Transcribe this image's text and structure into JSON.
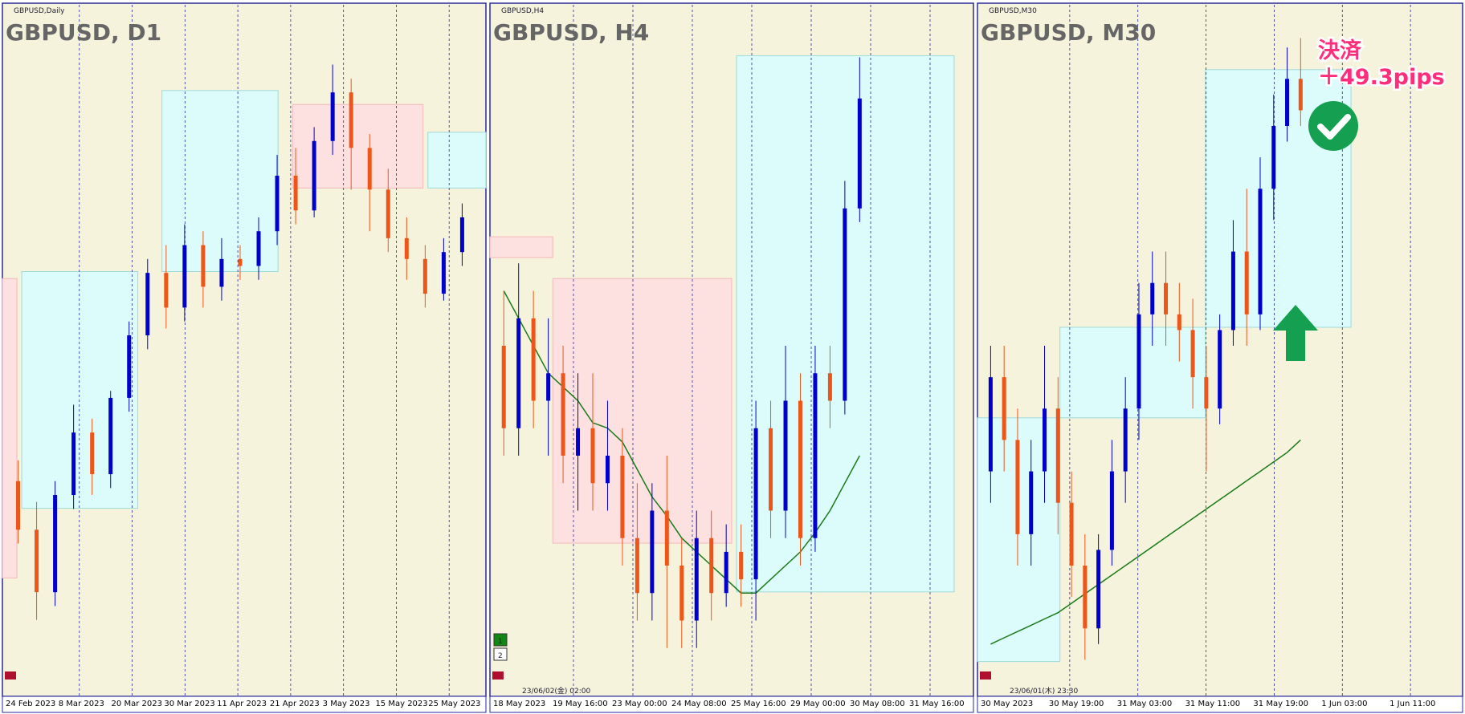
{
  "panels": [
    {
      "symbol_label": "GBPUSD,Daily",
      "title": "GBPUSD, D1",
      "dates": [
        "24 Feb 2023",
        "8 Mar 2023",
        "20 Mar 2023",
        "30 Mar 2023",
        "11 Apr 2023",
        "21 Apr 2023",
        "3 May 2023",
        "15 May 2023",
        "25 May 2023"
      ],
      "ylim": [
        1.18,
        1.275
      ],
      "up_color": "#0000cc",
      "down_color": "#ee5518",
      "open": [
        1.208,
        1.201,
        1.192,
        1.206,
        1.215,
        1.209,
        1.22,
        1.229,
        1.238,
        1.233,
        1.242,
        1.236,
        1.24,
        1.239,
        1.244,
        1.252,
        1.247,
        1.257,
        1.264,
        1.256,
        1.25,
        1.243,
        1.24,
        1.235,
        1.241
      ],
      "high": [
        1.211,
        1.205,
        1.208,
        1.219,
        1.217,
        1.221,
        1.231,
        1.24,
        1.242,
        1.245,
        1.244,
        1.243,
        1.242,
        1.246,
        1.255,
        1.256,
        1.259,
        1.268,
        1.266,
        1.258,
        1.253,
        1.246,
        1.242,
        1.243,
        1.248
      ],
      "low": [
        1.199,
        1.188,
        1.19,
        1.204,
        1.206,
        1.207,
        1.218,
        1.227,
        1.23,
        1.231,
        1.233,
        1.234,
        1.237,
        1.237,
        1.242,
        1.245,
        1.246,
        1.255,
        1.25,
        1.244,
        1.241,
        1.237,
        1.233,
        1.234,
        1.239
      ],
      "close": [
        1.201,
        1.192,
        1.206,
        1.215,
        1.209,
        1.22,
        1.229,
        1.238,
        1.233,
        1.242,
        1.236,
        1.24,
        1.239,
        1.244,
        1.252,
        1.247,
        1.257,
        1.264,
        1.256,
        1.25,
        1.243,
        1.24,
        1.235,
        1.241,
        1.246
      ]
    },
    {
      "symbol_label": "GBPUSD,H4",
      "title": "GBPUSD, H4",
      "dates": [
        "18 May 2023",
        "19 May 16:00",
        "23 May 00:00",
        "24 May 08:00",
        "25 May 16:00",
        "29 May 00:00",
        "30 May 08:00",
        "31 May 16:00"
      ],
      "ylim": [
        1.232,
        1.256
      ],
      "up_color": "#0000cc",
      "down_color": "#ee5518",
      "ma_color": "#1a7a1a",
      "buttons": [
        "1",
        "2"
      ],
      "cursor_time": "23/06/02(金) 02:00",
      "open": [
        1.244,
        1.241,
        1.245,
        1.242,
        1.243,
        1.24,
        1.241,
        1.239,
        1.24,
        1.237,
        1.235,
        1.238,
        1.236,
        1.234,
        1.237,
        1.235,
        1.2365,
        1.2355,
        1.241,
        1.238,
        1.242,
        1.237,
        1.243,
        1.242,
        1.249
      ],
      "high": [
        1.246,
        1.247,
        1.246,
        1.245,
        1.244,
        1.243,
        1.243,
        1.242,
        1.241,
        1.239,
        1.239,
        1.24,
        1.237,
        1.238,
        1.238,
        1.2375,
        1.2375,
        1.242,
        1.242,
        1.244,
        1.243,
        1.244,
        1.244,
        1.25,
        1.2545
      ],
      "low": [
        1.24,
        1.24,
        1.241,
        1.24,
        1.239,
        1.238,
        1.238,
        1.238,
        1.236,
        1.234,
        1.234,
        1.233,
        1.233,
        1.233,
        1.234,
        1.2345,
        1.2345,
        1.234,
        1.237,
        1.237,
        1.236,
        1.2365,
        1.241,
        1.2415,
        1.2485
      ],
      "close": [
        1.241,
        1.245,
        1.242,
        1.243,
        1.24,
        1.241,
        1.239,
        1.24,
        1.237,
        1.235,
        1.238,
        1.236,
        1.234,
        1.237,
        1.235,
        1.2365,
        1.2355,
        1.241,
        1.238,
        1.242,
        1.237,
        1.243,
        1.242,
        1.249,
        1.253
      ],
      "ma": [
        1.246,
        1.245,
        1.244,
        1.243,
        1.2425,
        1.242,
        1.2412,
        1.241,
        1.2405,
        1.2395,
        1.2385,
        1.2378,
        1.237,
        1.2365,
        1.236,
        1.2355,
        1.235,
        1.235,
        1.2355,
        1.236,
        1.2365,
        1.2372,
        1.238,
        1.239,
        1.24
      ]
    },
    {
      "symbol_label": "GBPUSD,M30",
      "title": "GBPUSD, M30",
      "dates": [
        "30 May 2023",
        "30 May 19:00",
        "31 May 03:00",
        "31 May 11:00",
        "31 May 19:00",
        "1 Jun 03:00",
        "1 Jun 11:00"
      ],
      "ylim": [
        1.2355,
        1.2565
      ],
      "up_color": "#0000cc",
      "down_color": "#ee5518",
      "ma_color": "#1a7a1a",
      "cursor_time": "23/06/01(木) 23:30",
      "annotation": [
        "決済",
        "＋49.3pips"
      ],
      "open": [
        1.242,
        1.245,
        1.243,
        1.24,
        1.242,
        1.244,
        1.241,
        1.239,
        1.237,
        1.2395,
        1.242,
        1.244,
        1.247,
        1.248,
        1.247,
        1.2465,
        1.245,
        1.244,
        1.2465,
        1.249,
        1.247,
        1.251,
        1.253,
        1.2545
      ],
      "high": [
        1.246,
        1.246,
        1.244,
        1.243,
        1.246,
        1.245,
        1.242,
        1.24,
        1.24,
        1.243,
        1.245,
        1.248,
        1.249,
        1.249,
        1.248,
        1.2475,
        1.246,
        1.247,
        1.25,
        1.251,
        1.252,
        1.254,
        1.2555,
        1.2558
      ],
      "low": [
        1.241,
        1.242,
        1.239,
        1.239,
        1.241,
        1.24,
        1.238,
        1.236,
        1.2365,
        1.239,
        1.241,
        1.243,
        1.246,
        1.246,
        1.2455,
        1.244,
        1.242,
        1.2435,
        1.246,
        1.246,
        1.2465,
        1.25,
        1.2525,
        1.253
      ],
      "close": [
        1.245,
        1.243,
        1.24,
        1.242,
        1.244,
        1.241,
        1.239,
        1.237,
        1.2395,
        1.242,
        1.244,
        1.247,
        1.248,
        1.247,
        1.2465,
        1.245,
        1.244,
        1.2465,
        1.249,
        1.247,
        1.251,
        1.253,
        1.2545,
        1.2535
      ],
      "ma": [
        1.2365,
        1.2367,
        1.2369,
        1.2371,
        1.2373,
        1.2375,
        1.2378,
        1.2381,
        1.2384,
        1.2387,
        1.239,
        1.2393,
        1.2396,
        1.2399,
        1.2402,
        1.2405,
        1.2408,
        1.2411,
        1.2414,
        1.2417,
        1.242,
        1.2423,
        1.2426,
        1.243
      ]
    }
  ]
}
